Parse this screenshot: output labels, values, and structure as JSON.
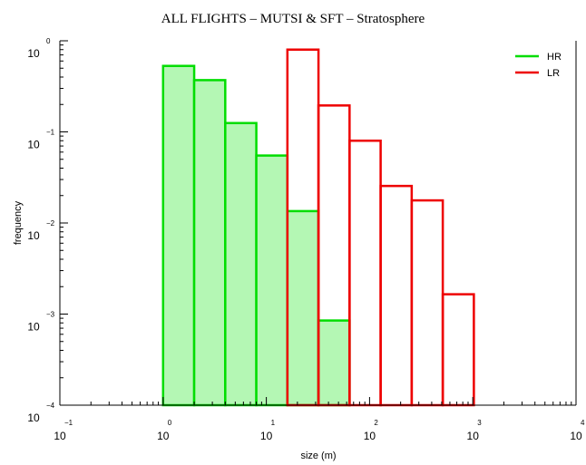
{
  "chart_data": {
    "type": "bar",
    "title": "ALL FLIGHTS –  MUTSI & SFT – Stratosphere",
    "xlabel": "size (m)",
    "ylabel": "frequency",
    "x_scale": "log",
    "y_scale": "log",
    "xlim": [
      0.1,
      10000
    ],
    "ylim": [
      0.0001,
      1
    ],
    "x_ticks": [
      {
        "base": "10",
        "exp": "−1"
      },
      {
        "base": "10",
        "exp": "0"
      },
      {
        "base": "10",
        "exp": "1"
      },
      {
        "base": "10",
        "exp": "2"
      },
      {
        "base": "10",
        "exp": "3"
      },
      {
        "base": "10",
        "exp": "4"
      }
    ],
    "y_ticks": [
      {
        "base": "10",
        "exp": "−4"
      },
      {
        "base": "10",
        "exp": "−3"
      },
      {
        "base": "10",
        "exp": "−2"
      },
      {
        "base": "10",
        "exp": "−1"
      },
      {
        "base": "10",
        "exp": "0"
      }
    ],
    "legend_position": "top-right",
    "series": [
      {
        "name": "HR",
        "color": "#00dd00",
        "fill": "#b4f7b4",
        "bins": [
          {
            "x0": 1.0,
            "x1": 2.0,
            "y": 0.53
          },
          {
            "x0": 2.0,
            "x1": 4.0,
            "y": 0.37
          },
          {
            "x0": 4.0,
            "x1": 8.0,
            "y": 0.125
          },
          {
            "x0": 8.0,
            "x1": 16.0,
            "y": 0.055
          },
          {
            "x0": 16.0,
            "x1": 32.0,
            "y": 0.0135
          },
          {
            "x0": 32.0,
            "x1": 64.0,
            "y": 0.00085
          },
          {
            "x0": 64.0,
            "x1": 128.0,
            "y": 0.0001
          }
        ]
      },
      {
        "name": "LR",
        "color": "#ee0000",
        "fill": "none",
        "bins": [
          {
            "x0": 16.0,
            "x1": 32.0,
            "y": 0.8
          },
          {
            "x0": 32.0,
            "x1": 64.0,
            "y": 0.195
          },
          {
            "x0": 64.0,
            "x1": 128.0,
            "y": 0.08
          },
          {
            "x0": 128.0,
            "x1": 256.0,
            "y": 0.0255
          },
          {
            "x0": 256.0,
            "x1": 512.0,
            "y": 0.0177
          },
          {
            "x0": 512.0,
            "x1": 1024.0,
            "y": 0.00165
          }
        ]
      }
    ]
  }
}
